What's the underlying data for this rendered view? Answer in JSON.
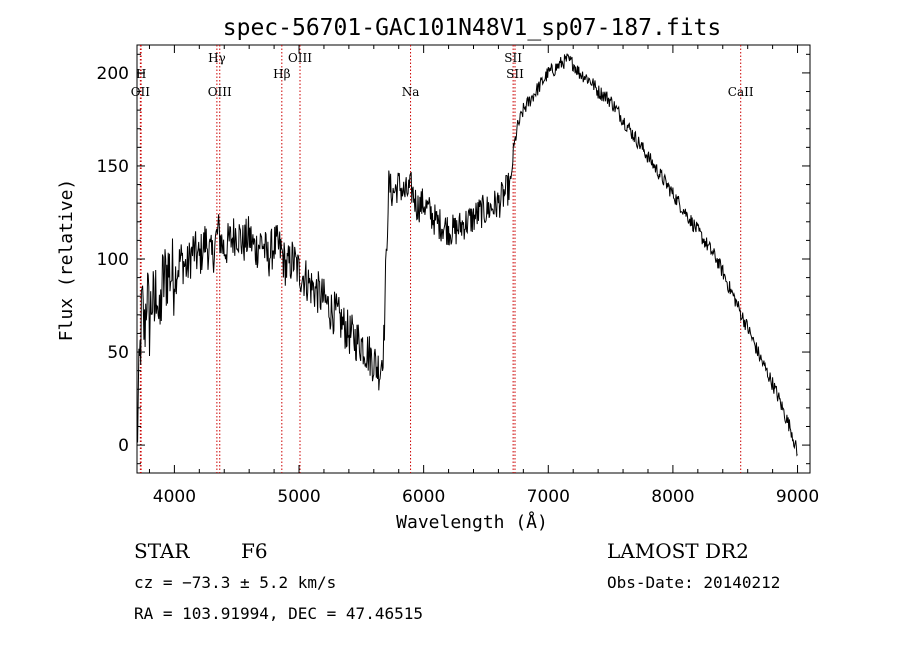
{
  "chart_data": {
    "type": "line",
    "title": "spec-56701-GAC101N48V1_sp07-187.fits",
    "xlabel": "Wavelength (Å)",
    "ylabel": "Flux (relative)",
    "xlim": [
      3700,
      9100
    ],
    "ylim": [
      -15,
      215
    ],
    "x_ticks": [
      4000,
      5000,
      6000,
      7000,
      8000,
      9000
    ],
    "y_ticks": [
      0,
      50,
      100,
      150,
      200
    ],
    "series": [
      {
        "x": [
          3700,
          3720,
          3740,
          3760,
          3780,
          3800,
          3820,
          3840,
          3860,
          3880,
          3900,
          3950,
          4000,
          4050,
          4100,
          4150,
          4200,
          4250,
          4300,
          4350,
          4400,
          4450,
          4500,
          4550,
          4600,
          4650,
          4700,
          4750,
          4800,
          4850,
          4900,
          4950,
          5000,
          5050,
          5100,
          5150,
          5200,
          5250,
          5300,
          5350,
          5400,
          5450,
          5500,
          5550,
          5600,
          5650,
          5680,
          5700,
          5720,
          5750,
          5800,
          5850,
          5900,
          5950,
          6000,
          6050,
          6100,
          6150,
          6200,
          6250,
          6300,
          6350,
          6400,
          6450,
          6500,
          6550,
          6600,
          6650,
          6700,
          6720,
          6750,
          6800,
          6850,
          6900,
          6950,
          7000,
          7050,
          7100,
          7150,
          7200,
          7250,
          7300,
          7350,
          7400,
          7450,
          7500,
          7550,
          7600,
          7650,
          7700,
          7750,
          7800,
          7850,
          7900,
          7950,
          8000,
          8050,
          8100,
          8150,
          8200,
          8250,
          8300,
          8350,
          8400,
          8450,
          8500,
          8550,
          8600,
          8650,
          8700,
          8750,
          8800,
          8850,
          8900,
          8950,
          9000
        ],
        "y": [
          0,
          40,
          75,
          60,
          85,
          65,
          80,
          70,
          90,
          60,
          85,
          95,
          90,
          100,
          95,
          105,
          100,
          110,
          100,
          115,
          105,
          110,
          115,
          108,
          112,
          105,
          110,
          100,
          108,
          105,
          95,
          100,
          93,
          90,
          85,
          82,
          78,
          73,
          70,
          65,
          60,
          57,
          55,
          50,
          45,
          40,
          55,
          100,
          140,
          135,
          140,
          135,
          138,
          128,
          130,
          125,
          120,
          118,
          116,
          115,
          118,
          120,
          122,
          125,
          126,
          128,
          130,
          135,
          140,
          158,
          170,
          180,
          185,
          190,
          195,
          200,
          202,
          205,
          207,
          205,
          200,
          198,
          195,
          190,
          188,
          185,
          180,
          175,
          170,
          165,
          160,
          155,
          150,
          145,
          140,
          135,
          130,
          125,
          120,
          115,
          110,
          105,
          100,
          93,
          85,
          78,
          70,
          63,
          55,
          47,
          40,
          33,
          25,
          16,
          8,
          -5
        ]
      }
    ],
    "lines": [
      {
        "name": "OII",
        "x": 3727,
        "row": 2
      },
      {
        "name": "H",
        "x": 3733,
        "row": 1
      },
      {
        "name": "Hγ",
        "x": 4341,
        "row": 0
      },
      {
        "name": "OIII",
        "x": 4364,
        "row": 2
      },
      {
        "name": "Hβ",
        "x": 4862,
        "row": 1
      },
      {
        "name": "OIII",
        "x": 5008,
        "row": 0
      },
      {
        "name": "Na",
        "x": 5895,
        "row": 2
      },
      {
        "name": "SII",
        "x": 6718,
        "row": 0
      },
      {
        "name": "SII",
        "x": 6733,
        "row": 1
      },
      {
        "name": "CaII",
        "x": 8544,
        "row": 2
      }
    ],
    "line_color": "#cc0000"
  },
  "info": {
    "obj_class": "STAR",
    "subclass": "F6",
    "survey": "LAMOST DR2",
    "cz": "cz = −73.3 ± 5.2 km/s",
    "obs_date": "Obs-Date: 20140212",
    "radec": "RA = 103.91994, DEC =  47.46515"
  }
}
